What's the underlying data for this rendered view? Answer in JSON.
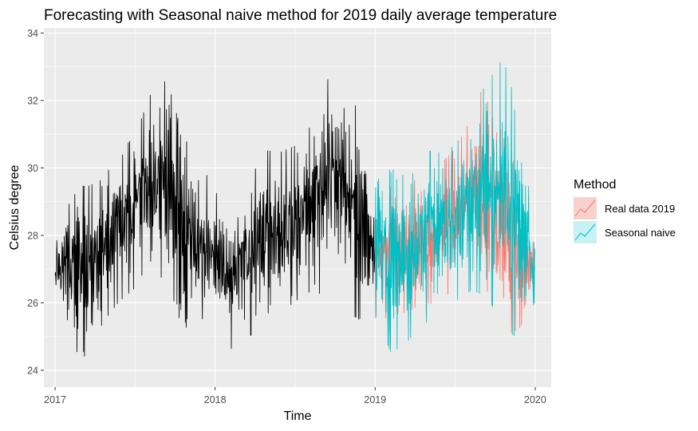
{
  "chart_data": {
    "type": "line",
    "title": "Forecasting with Seasonal naive method for 2019 daily average temperature",
    "xlabel": "Time",
    "ylabel": "Celsius degree",
    "xlim": [
      2016.93,
      2020.1
    ],
    "ylim": [
      23.5,
      34.15
    ],
    "x_ticks": [
      2017,
      2018,
      2019,
      2020
    ],
    "x_tick_labels": [
      "2017",
      "2018",
      "2019",
      "2020"
    ],
    "y_ticks": [
      24,
      26,
      28,
      30,
      32,
      34
    ],
    "y_tick_labels": [
      "24",
      "26",
      "28",
      "30",
      "32",
      "34"
    ],
    "grid": true,
    "legend": {
      "title": "Method",
      "position": "right",
      "entries": [
        {
          "label": "Real data 2019",
          "color": "#F8766D",
          "fill": "#F8D0CC"
        },
        {
          "label": "Seasonal naive",
          "color": "#00BFC4",
          "fill": "#C7F1F2"
        }
      ]
    },
    "series": [
      {
        "name": "",
        "color": "#000000",
        "x_start": 2017.0,
        "x_end": 2019.0,
        "summary_x": [
          2017.0,
          2017.1,
          2017.2,
          2017.3,
          2017.4,
          2017.5,
          2017.6,
          2017.7,
          2017.8,
          2017.9,
          2018.0,
          2018.1,
          2018.2,
          2018.3,
          2018.4,
          2018.5,
          2018.6,
          2018.7,
          2018.8,
          2018.9,
          2019.0
        ],
        "summary_low": [
          25.8,
          24.5,
          24.2,
          25.3,
          25.9,
          26.3,
          26.7,
          26.5,
          25.0,
          25.5,
          24.9,
          24.5,
          24.8,
          25.2,
          25.5,
          25.9,
          26.2,
          26.0,
          25.6,
          25.3,
          26.2
        ],
        "summary_high": [
          28.5,
          29.7,
          29.6,
          29.8,
          30.6,
          31.1,
          32.4,
          32.8,
          31.1,
          30.4,
          29.4,
          29.2,
          29.5,
          30.7,
          30.6,
          30.8,
          31.5,
          32.8,
          33.4,
          32.0,
          28.3
        ]
      },
      {
        "name": "Real data 2019",
        "color": "#F8766D",
        "x_start": 2019.0,
        "x_end": 2019.997,
        "summary_x": [
          2019.0,
          2019.1,
          2019.2,
          2019.3,
          2019.4,
          2019.5,
          2019.6,
          2019.7,
          2019.8,
          2019.9,
          2020.0
        ],
        "summary_low": [
          25.3,
          25.5,
          25.6,
          25.9,
          25.8,
          26.4,
          26.8,
          25.0,
          24.8,
          25.1,
          25.9
        ],
        "summary_high": [
          28.6,
          29.6,
          29.8,
          29.7,
          30.2,
          30.7,
          31.6,
          33.0,
          32.0,
          29.4,
          28.2
        ]
      },
      {
        "name": "Seasonal naive",
        "color": "#00BFC4",
        "x_start": 2019.0,
        "x_end": 2019.997,
        "summary_x": [
          2019.0,
          2019.1,
          2019.2,
          2019.3,
          2019.4,
          2019.5,
          2019.6,
          2019.7,
          2019.8,
          2019.9,
          2020.0
        ],
        "summary_low": [
          25.5,
          24.3,
          24.7,
          25.2,
          25.5,
          25.9,
          26.2,
          26.0,
          25.0,
          24.7,
          26.0
        ],
        "summary_high": [
          29.5,
          30.9,
          29.6,
          30.7,
          30.6,
          30.8,
          31.7,
          32.8,
          33.5,
          31.8,
          28.0
        ]
      }
    ]
  }
}
